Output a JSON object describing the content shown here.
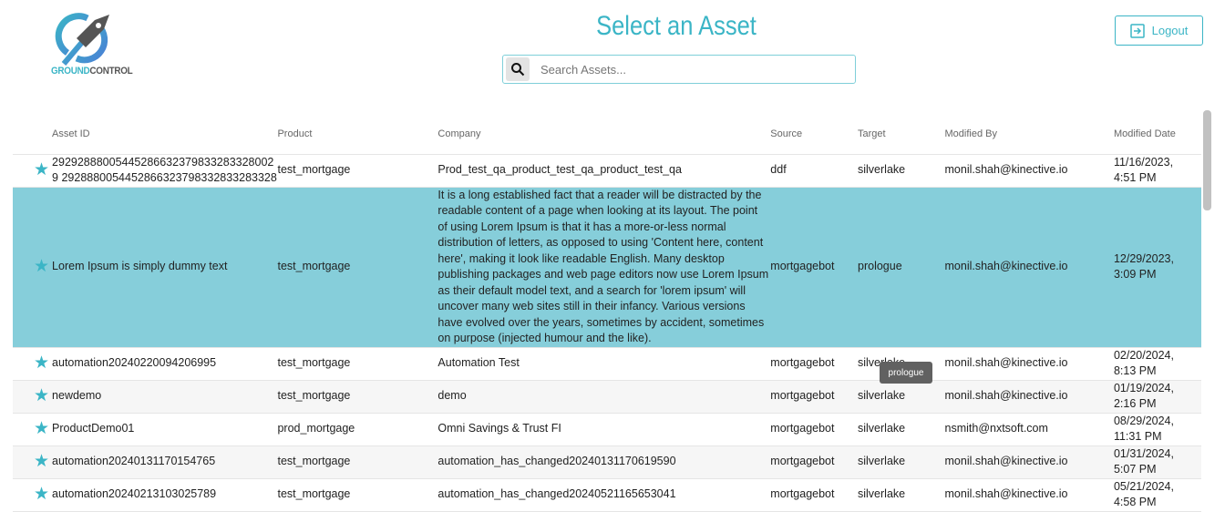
{
  "brand": {
    "logo_text_a": "GROUND",
    "logo_text_b": "CONTROL"
  },
  "header": {
    "title": "Select an Asset",
    "logout_label": "Logout"
  },
  "search": {
    "placeholder": "Search Assets...",
    "value": ""
  },
  "colors": {
    "accent": "#3bb5c6",
    "selected_row": "#86ceda"
  },
  "table": {
    "columns": [
      "Asset ID",
      "Product",
      "Company",
      "Source",
      "Target",
      "Modified By",
      "Modified Date"
    ],
    "rows": [
      {
        "id": "292928880054452866323798332833280029 2928880054452866323798332833283328",
        "product": "test_mortgage",
        "company": "Prod_test_qa_product_test_qa_product_test_qa",
        "source": "ddf",
        "target": "silverlake",
        "by": "monil.shah@kinective.io",
        "date": "11/16/2023, 4:51 PM"
      },
      {
        "id": "Lorem Ipsum is simply dummy text",
        "product": "test_mortgage",
        "company": "It is a long established fact that a reader will be distracted by the readable content of a page when looking at its layout. The point of using Lorem Ipsum is that it has a more-or-less normal distribution of letters, as opposed to using 'Content here, content here', making it look like readable English. Many desktop publishing packages and web page editors now use Lorem Ipsum as their default model text, and a search for 'lorem ipsum' will uncover many web sites still in their infancy. Various versions have evolved over the years, sometimes by accident, sometimes on purpose (injected humour and the like).",
        "source": "mortgagebot",
        "target": "prologue",
        "by": "monil.shah@kinective.io",
        "date": "12/29/2023, 3:09 PM"
      },
      {
        "id": "automation20240220094206995",
        "product": "test_mortgage",
        "company": "Automation Test",
        "source": "mortgagebot",
        "target": "silverlake",
        "by": "monil.shah@kinective.io",
        "date": "02/20/2024, 8:13 PM"
      },
      {
        "id": "newdemo",
        "product": "test_mortgage",
        "company": "demo",
        "source": "mortgagebot",
        "target": "silverlake",
        "by": "monil.shah@kinective.io",
        "date": "01/19/2024, 2:16 PM"
      },
      {
        "id": "ProductDemo01",
        "product": "prod_mortgage",
        "company": "Omni Savings & Trust FI",
        "source": "mortgagebot",
        "target": "silverlake",
        "by": "nsmith@nxtsoft.com",
        "date": "08/29/2024, 11:31 PM"
      },
      {
        "id": "automation20240131170154765",
        "product": "test_mortgage",
        "company": "automation_has_changed20240131170619590",
        "source": "mortgagebot",
        "target": "silverlake",
        "by": "monil.shah@kinective.io",
        "date": "01/31/2024, 5:07 PM"
      },
      {
        "id": "automation20240213103025789",
        "product": "test_mortgage",
        "company": "automation_has_changed20240521165653041",
        "source": "mortgagebot",
        "target": "silverlake",
        "by": "monil.shah@kinective.io",
        "date": "05/21/2024, 4:58 PM"
      }
    ]
  },
  "tooltip": {
    "text": "prologue"
  }
}
